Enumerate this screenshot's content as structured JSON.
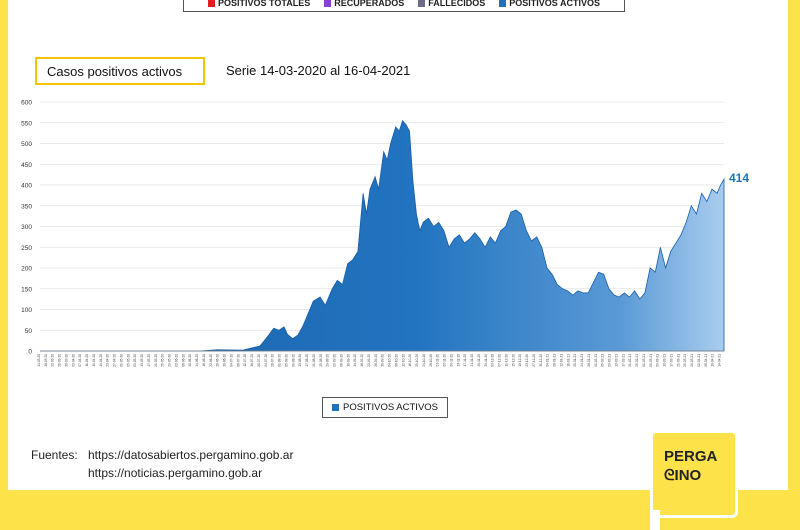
{
  "top_legend": {
    "items": [
      {
        "label": "POSITIVOS TOTALES",
        "color": "#e02020"
      },
      {
        "label": "RECUPERADOS",
        "color": "#8a3fd1"
      },
      {
        "label": "FALLECIDOS",
        "color": "#6b6b8a"
      },
      {
        "label": "POSITIVOS ACTIVOS",
        "color": "#1e73be"
      }
    ]
  },
  "title_box": "Casos positivos activos",
  "series_text": "Serie 14-03-2020 al 16-04-2021",
  "legend_label": "POSITIVOS ACTIVOS",
  "sources": {
    "label": "Fuentes:",
    "line1": "https://datosabiertos.pergamino.gob.ar",
    "line2": "https://noticias.pergamino.gob.ar"
  },
  "logo": {
    "line1": "PERGA",
    "line2": "ᘓINO"
  },
  "chart_data": {
    "type": "area",
    "title": "Casos positivos activos",
    "xlabel": "",
    "ylabel": "",
    "ylim": [
      0,
      600
    ],
    "yticks": [
      0,
      50,
      100,
      150,
      200,
      250,
      300,
      350,
      400,
      450,
      500,
      550,
      600
    ],
    "grid": true,
    "color": "#1e73be",
    "last_label": "414",
    "series": [
      {
        "name": "POSITIVOS ACTIVOS",
        "points": [
          [
            "14-03-20",
            0
          ],
          [
            "15-06-20",
            0
          ],
          [
            "25-06-20",
            3
          ],
          [
            "10-07-20",
            2
          ],
          [
            "20-07-20",
            12
          ],
          [
            "25-07-20",
            38
          ],
          [
            "28-07-20",
            55
          ],
          [
            "31-07-20",
            50
          ],
          [
            "03-08-20",
            58
          ],
          [
            "05-08-20",
            40
          ],
          [
            "08-08-20",
            30
          ],
          [
            "11-08-20",
            38
          ],
          [
            "14-08-20",
            60
          ],
          [
            "17-08-20",
            90
          ],
          [
            "20-08-20",
            120
          ],
          [
            "24-08-20",
            130
          ],
          [
            "27-08-20",
            110
          ],
          [
            "31-08-20",
            150
          ],
          [
            "03-09-20",
            170
          ],
          [
            "06-09-20",
            160
          ],
          [
            "09-09-20",
            210
          ],
          [
            "12-09-20",
            220
          ],
          [
            "15-09-20",
            240
          ],
          [
            "18-09-20",
            380
          ],
          [
            "20-09-20",
            330
          ],
          [
            "22-09-20",
            390
          ],
          [
            "25-09-20",
            420
          ],
          [
            "27-09-20",
            390
          ],
          [
            "30-09-20",
            480
          ],
          [
            "02-10-20",
            460
          ],
          [
            "04-10-20",
            500
          ],
          [
            "07-10-20",
            540
          ],
          [
            "09-10-20",
            530
          ],
          [
            "11-10-20",
            555
          ],
          [
            "13-10-20",
            545
          ],
          [
            "15-10-20",
            530
          ],
          [
            "17-10-20",
            410
          ],
          [
            "19-10-20",
            330
          ],
          [
            "21-10-20",
            290
          ],
          [
            "23-10-20",
            310
          ],
          [
            "26-10-20",
            320
          ],
          [
            "29-10-20",
            300
          ],
          [
            "01-11-20",
            310
          ],
          [
            "04-11-20",
            290
          ],
          [
            "07-11-20",
            250
          ],
          [
            "10-11-20",
            270
          ],
          [
            "13-11-20",
            280
          ],
          [
            "16-11-20",
            260
          ],
          [
            "19-11-20",
            270
          ],
          [
            "22-11-20",
            285
          ],
          [
            "25-11-20",
            270
          ],
          [
            "28-11-20",
            250
          ],
          [
            "01-12-20",
            275
          ],
          [
            "04-12-20",
            260
          ],
          [
            "07-12-20",
            290
          ],
          [
            "10-12-20",
            300
          ],
          [
            "13-12-20",
            335
          ],
          [
            "16-12-20",
            340
          ],
          [
            "19-12-20",
            330
          ],
          [
            "22-12-20",
            290
          ],
          [
            "25-12-20",
            265
          ],
          [
            "28-12-20",
            275
          ],
          [
            "31-12-20",
            250
          ],
          [
            "03-01-21",
            200
          ],
          [
            "06-01-21",
            185
          ],
          [
            "09-01-21",
            160
          ],
          [
            "12-01-21",
            150
          ],
          [
            "15-01-21",
            145
          ],
          [
            "18-01-21",
            135
          ],
          [
            "21-01-21",
            145
          ],
          [
            "24-01-21",
            140
          ],
          [
            "27-01-21",
            140
          ],
          [
            "30-01-21",
            165
          ],
          [
            "02-02-21",
            190
          ],
          [
            "05-02-21",
            185
          ],
          [
            "08-02-21",
            150
          ],
          [
            "11-02-21",
            135
          ],
          [
            "14-02-21",
            130
          ],
          [
            "17-02-21",
            140
          ],
          [
            "20-02-21",
            130
          ],
          [
            "23-02-21",
            145
          ],
          [
            "26-02-21",
            125
          ],
          [
            "01-03-21",
            140
          ],
          [
            "04-03-21",
            200
          ],
          [
            "07-03-21",
            190
          ],
          [
            "10-03-21",
            250
          ],
          [
            "13-03-21",
            200
          ],
          [
            "16-03-21",
            240
          ],
          [
            "19-03-21",
            260
          ],
          [
            "22-03-21",
            280
          ],
          [
            "25-03-21",
            310
          ],
          [
            "28-03-21",
            350
          ],
          [
            "31-03-21",
            330
          ],
          [
            "03-04-21",
            380
          ],
          [
            "06-04-21",
            360
          ],
          [
            "09-04-21",
            390
          ],
          [
            "12-04-21",
            380
          ],
          [
            "14-04-21",
            400
          ],
          [
            "16-04-21",
            414
          ]
        ]
      }
    ]
  }
}
